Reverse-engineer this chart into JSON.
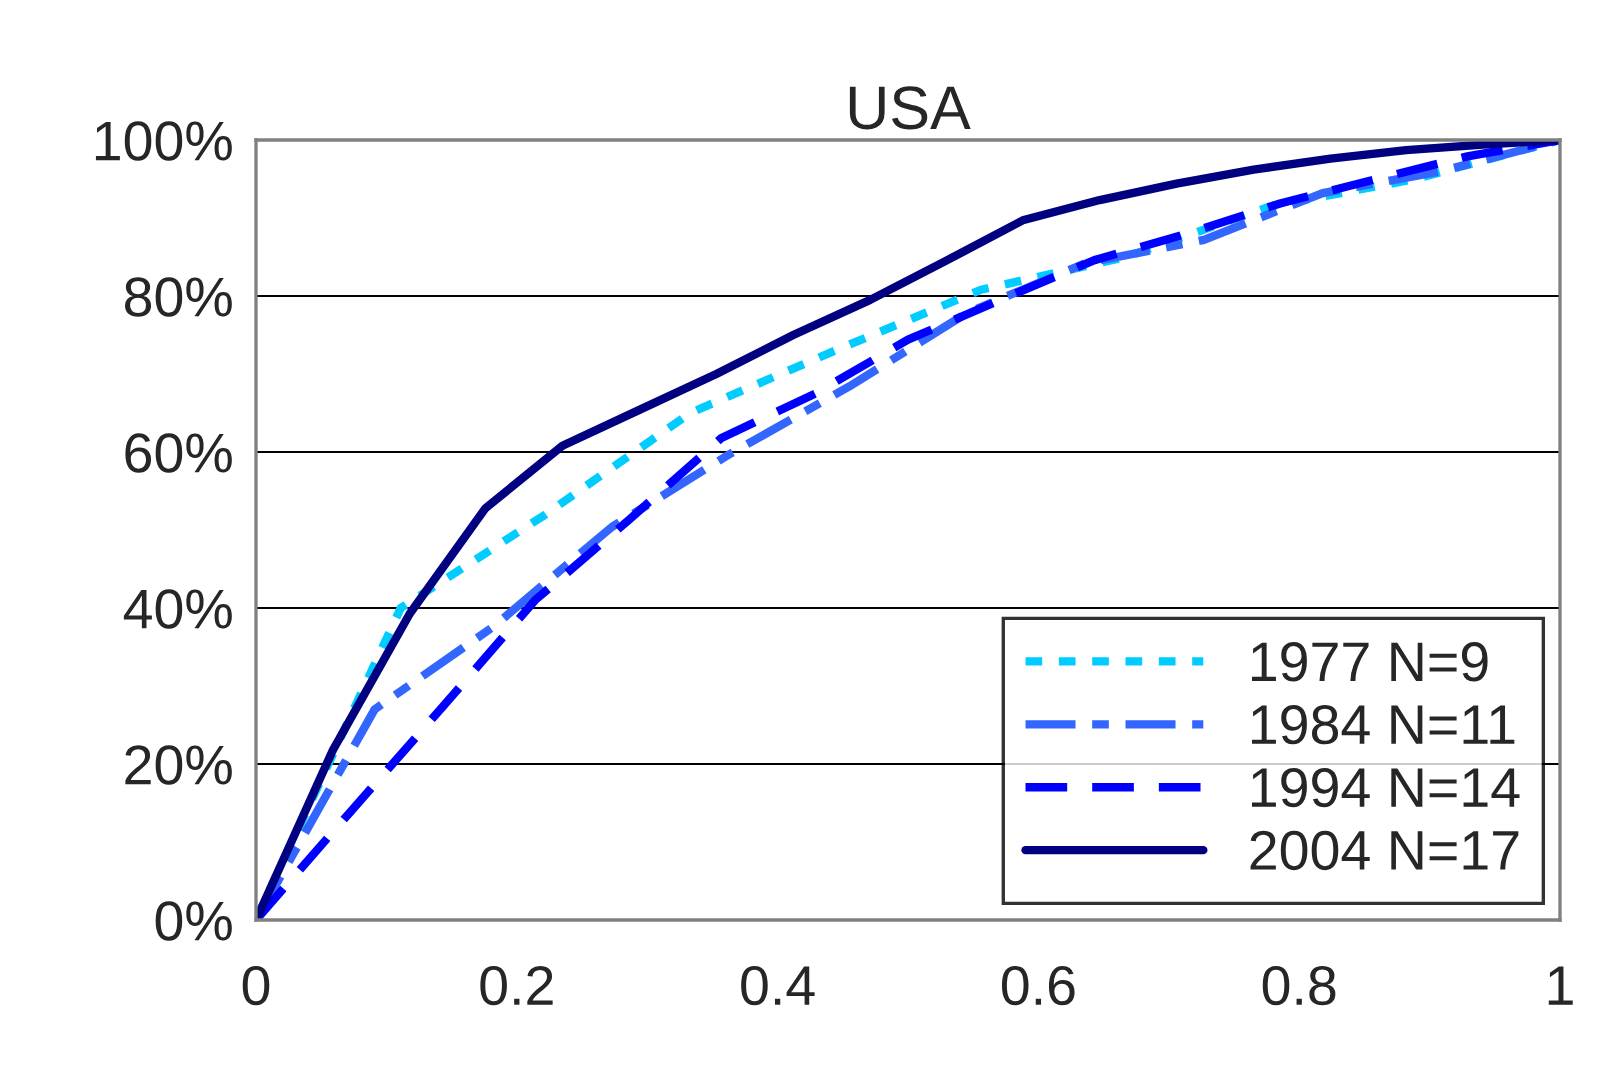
{
  "chart_data": {
    "type": "line",
    "title": "USA",
    "xlim": [
      0,
      1
    ],
    "xticks": [
      0,
      {
        "value": 0.2,
        "label": "0.2"
      },
      {
        "value": 0.4,
        "label": "0.4"
      },
      {
        "value": 0.6,
        "label": "0.6"
      },
      {
        "value": 0.8,
        "label": "0.8"
      },
      1
    ],
    "ylim": [
      0,
      100
    ],
    "yticks": [
      {
        "value": 0,
        "label": "0%"
      },
      {
        "value": 20,
        "label": "20%"
      },
      {
        "value": 40,
        "label": "40%"
      },
      {
        "value": 60,
        "label": "60%"
      },
      {
        "value": 80,
        "label": "80%"
      },
      {
        "value": 100,
        "label": "100%"
      }
    ],
    "grid": "y",
    "legend": "bottom right",
    "marker": "none",
    "series": [
      {
        "name": "1977 N=9",
        "color": "#00ccff",
        "line_style": "dotted",
        "x": [
          0,
          0.111,
          0.222,
          0.333,
          0.444,
          0.556,
          0.667,
          0.778,
          0.889,
          1
        ],
        "values": [
          0,
          40,
          52,
          65,
          73,
          80.8,
          85,
          91.5,
          95,
          100
        ]
      },
      {
        "name": "1984 N=11",
        "color": "#3366ff",
        "line_style": "dashed",
        "x": [
          0,
          0.091,
          0.182,
          0.273,
          0.364,
          0.455,
          0.545,
          0.636,
          0.727,
          0.818,
          0.909,
          1
        ],
        "values": [
          0,
          27,
          37.6,
          50.4,
          59.8,
          68.4,
          77.8,
          84.2,
          87.2,
          93.2,
          96,
          100
        ]
      },
      {
        "name": "1994 N=14",
        "color": "#0000ff",
        "line_style": "dashed",
        "x": [
          0,
          0.071,
          0.143,
          0.214,
          0.286,
          0.357,
          0.429,
          0.5,
          0.571,
          0.643,
          0.714,
          0.786,
          0.857,
          0.929,
          1
        ],
        "values": [
          0,
          13.6,
          27.3,
          41,
          51.3,
          61.8,
          67.5,
          74.4,
          79.5,
          84.6,
          88,
          91.9,
          94.9,
          97.9,
          100
        ]
      },
      {
        "name": "2004 N=17",
        "color": "#000080",
        "line_style": "solid",
        "x": [
          0,
          0.059,
          0.118,
          0.176,
          0.235,
          0.294,
          0.353,
          0.412,
          0.471,
          0.529,
          0.588,
          0.647,
          0.706,
          0.765,
          0.824,
          0.882,
          0.941,
          1
        ],
        "values": [
          0,
          21.8,
          39.3,
          52.8,
          60.8,
          65.4,
          70,
          75,
          79.5,
          84.5,
          89.7,
          92.3,
          94.4,
          96.2,
          97.6,
          98.7,
          99.4,
          100
        ]
      }
    ]
  }
}
